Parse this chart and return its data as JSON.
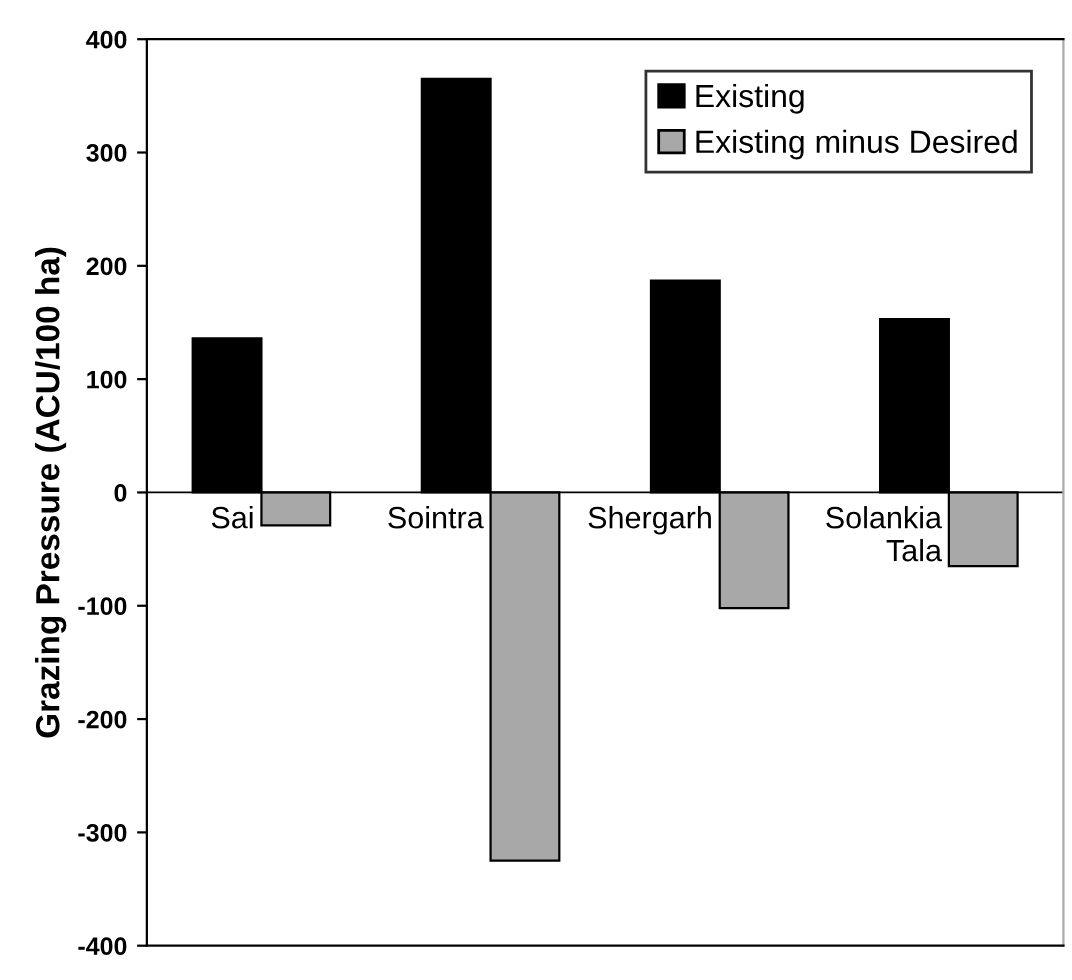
{
  "chart_data": {
    "type": "bar",
    "ylabel": "Grazing Pressure (ACU/100 ha)",
    "categories": [
      "Sai",
      "Sointra",
      "Shergarh",
      "Solankia Tala"
    ],
    "series": [
      {
        "name": "Existing",
        "color": "#000000",
        "values": [
          136,
          365,
          187,
          153
        ]
      },
      {
        "name": "Existing minus Desired",
        "color": "#a8a8a8",
        "values": [
          -29,
          -325,
          -102,
          -65
        ]
      }
    ],
    "ylim": [
      -400,
      400
    ],
    "yticks": [
      -400,
      -300,
      -200,
      -100,
      0,
      100,
      200,
      300,
      400
    ],
    "grid": false,
    "legend": "top right"
  }
}
